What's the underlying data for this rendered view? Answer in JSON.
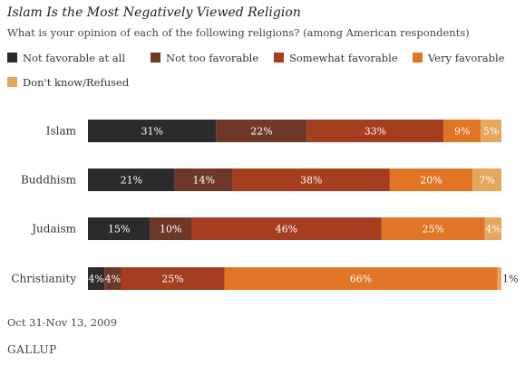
{
  "header": {
    "title": "Islam Is the Most Negatively Viewed Religion",
    "subtitle": "What is your opinion of each of the following religions? (among American respondents)"
  },
  "footer": {
    "date": "Oct 31-Nov 13, 2009",
    "logo": "GALLUP"
  },
  "chart_data": {
    "type": "bar",
    "orientation": "horizontal",
    "stacked": true,
    "categories": [
      "Islam",
      "Buddhism",
      "Judaism",
      "Christianity"
    ],
    "series": [
      {
        "name": "Not favorable at all",
        "color": "#2b2b2b",
        "values": [
          31,
          21,
          15,
          4
        ],
        "labels": [
          "31%",
          "21%",
          "15%",
          "4%"
        ]
      },
      {
        "name": "Not too favorable",
        "color": "#6e3828",
        "values": [
          22,
          14,
          10,
          4
        ],
        "labels": [
          "22%",
          "14%",
          "10%",
          "4%"
        ]
      },
      {
        "name": "Somewhat favorable",
        "color": "#a43e1f",
        "values": [
          33,
          38,
          46,
          25
        ],
        "labels": [
          "33%",
          "38%",
          "46%",
          "25%"
        ]
      },
      {
        "name": "Very favorable",
        "color": "#e07526",
        "values": [
          9,
          20,
          25,
          66
        ],
        "labels": [
          "9%",
          "20%",
          "25%",
          "66%"
        ]
      },
      {
        "name": "Don't know/Refused",
        "color": "#e6a75c",
        "values": [
          5,
          7,
          4,
          1
        ],
        "labels": [
          "5%",
          "7%",
          "4%",
          "1%"
        ]
      }
    ],
    "xlim": [
      0,
      100
    ],
    "grid": false,
    "legend": "top"
  }
}
